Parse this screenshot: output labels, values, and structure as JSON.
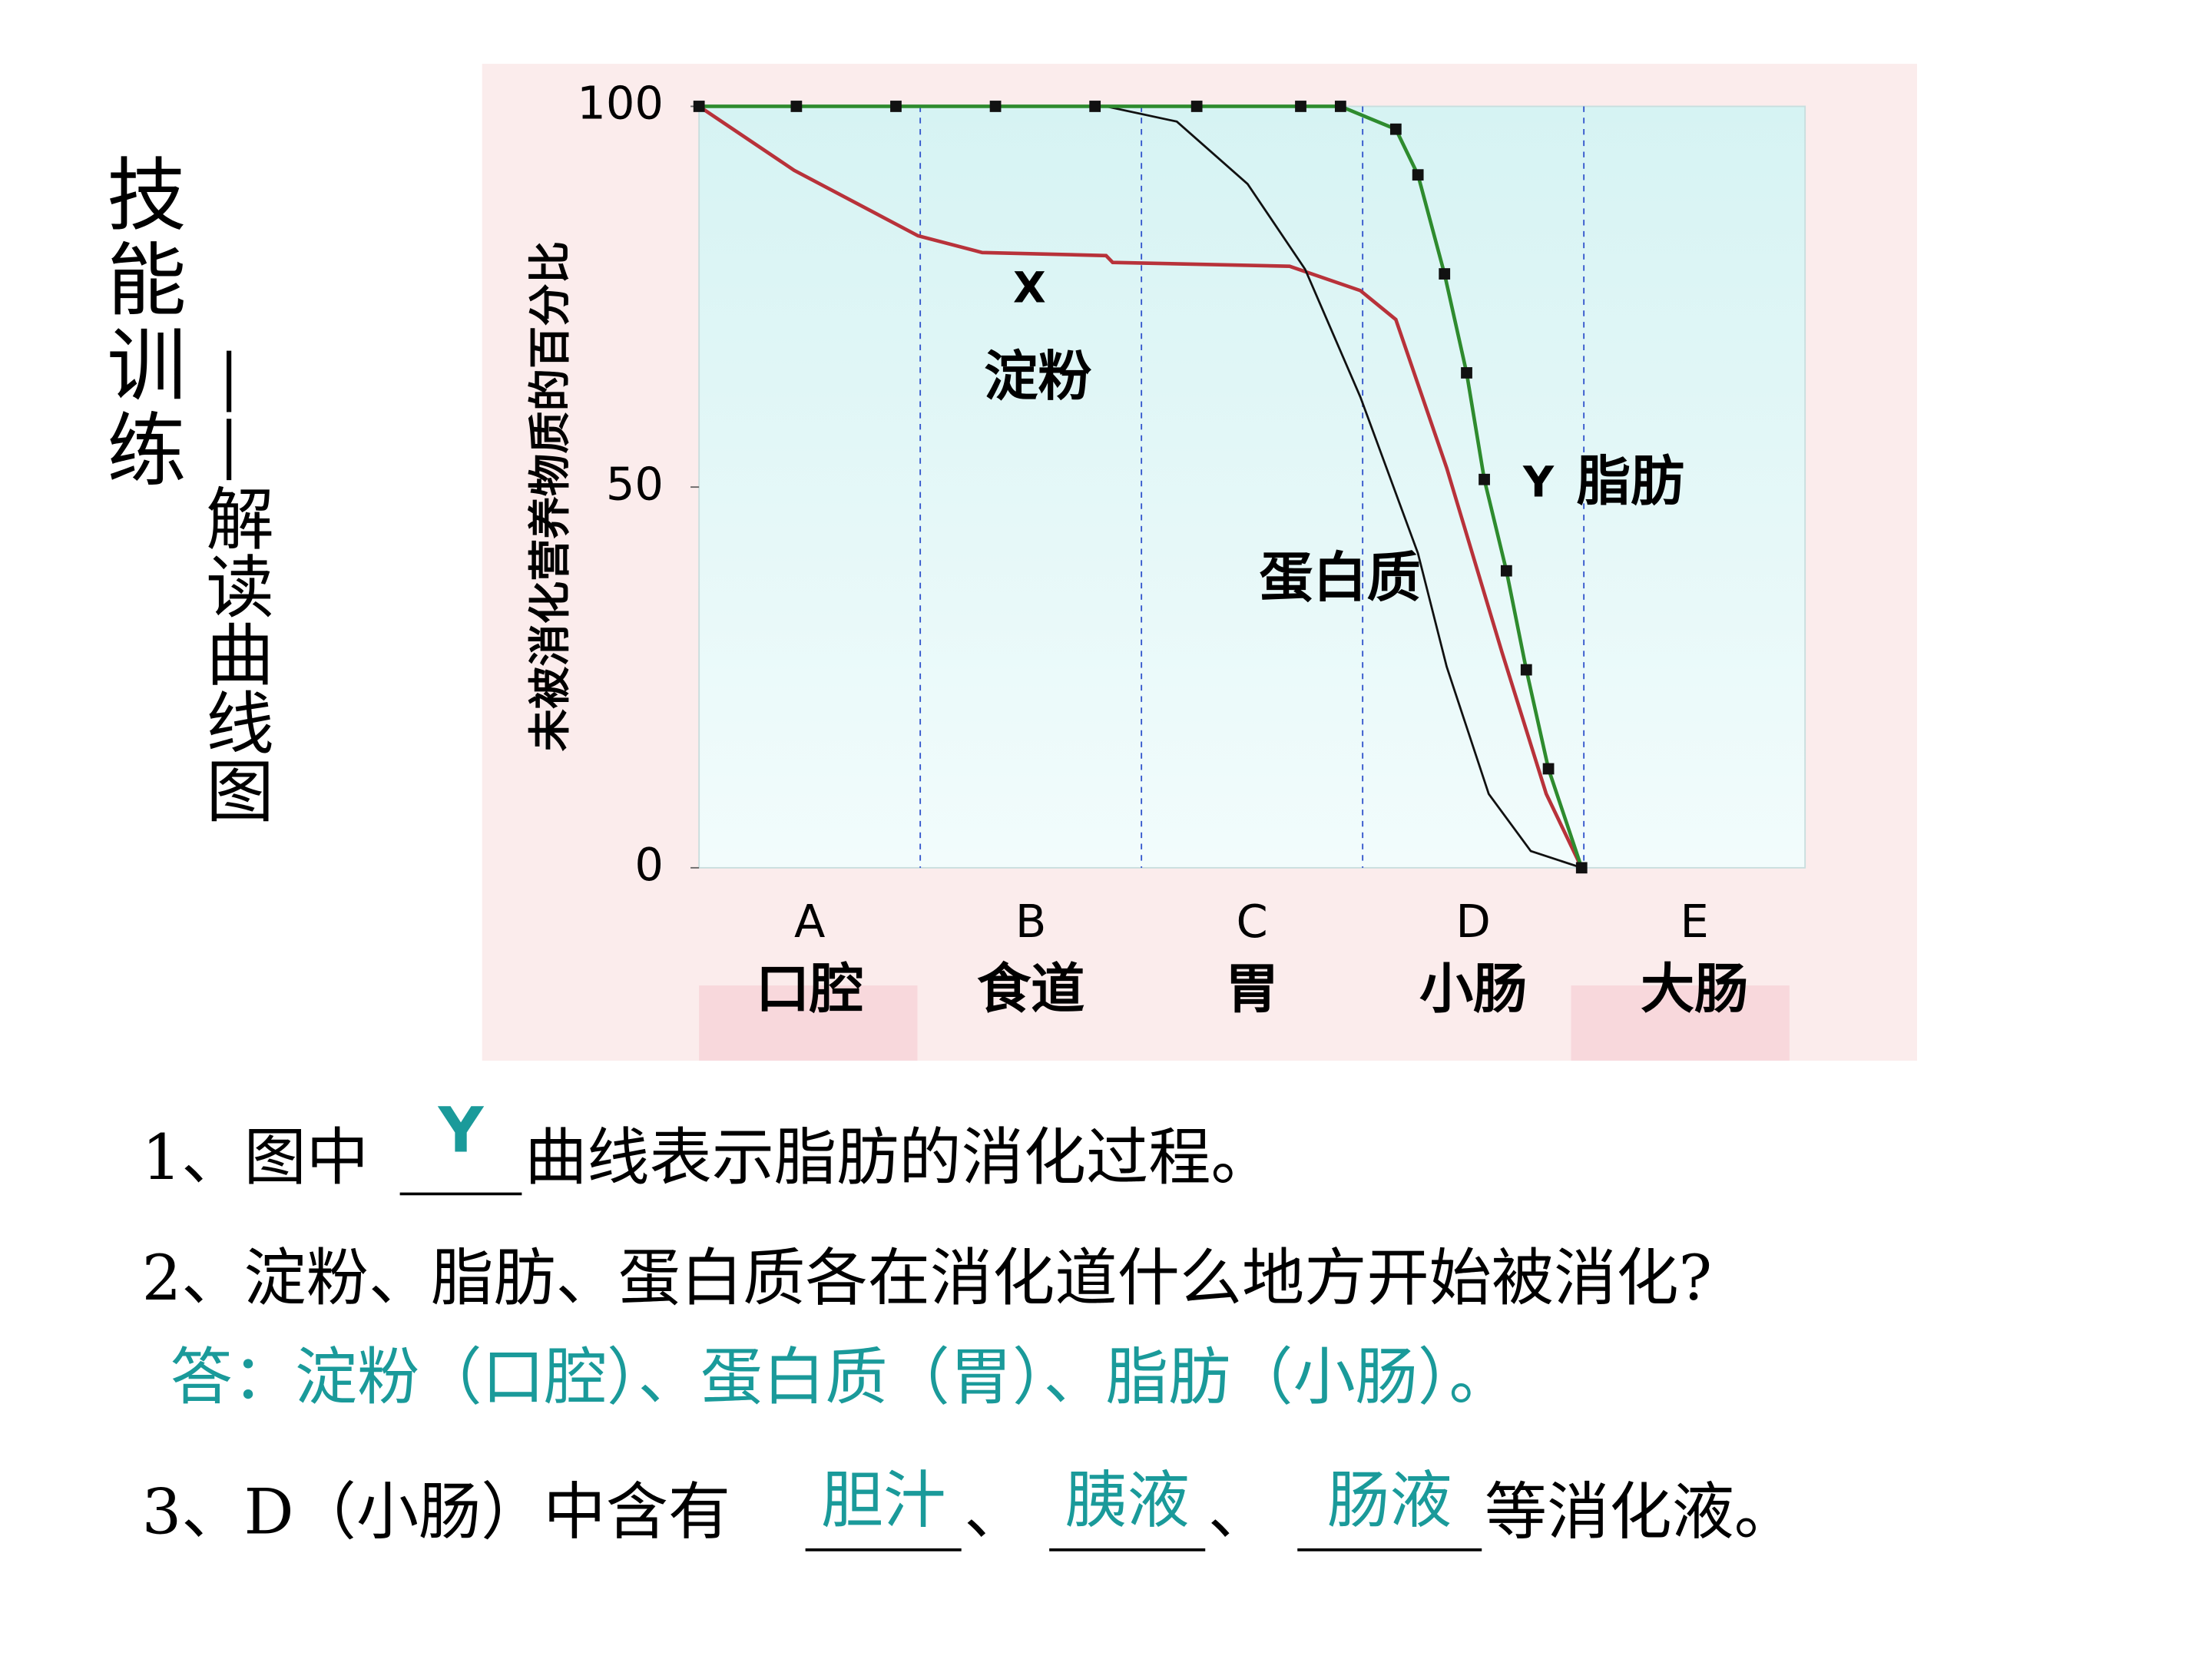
{
  "slide": {
    "title": "技能训练",
    "subtitle": "——解读曲线图",
    "questions": {
      "q1": {
        "before": "1、图中",
        "answer": "Y",
        "after": "曲线表示脂肪的消化过程。"
      },
      "q2": {
        "question": "2、淀粉、脂肪、蛋白质各在消化道什么地方开始被消化?",
        "answer": "答：淀粉（口腔）、蛋白质（胃）、脂肪（小肠）。"
      },
      "q3": {
        "before": "3、D（小肠）中含有",
        "answers": [
          "胆汁",
          "胰液",
          "肠液"
        ],
        "separator": "、",
        "after": "等消化液。"
      }
    }
  },
  "chart_data": {
    "type": "line",
    "y_label": "未被消化营养物质的百分比",
    "categories": [
      "A",
      "B",
      "C",
      "D",
      "E"
    ],
    "category_labels": [
      "口腔",
      "食道",
      "胃",
      "小肠",
      "大肠"
    ],
    "xlim": [
      0,
      5
    ],
    "ylim": [
      0,
      100
    ],
    "yticks": [
      0,
      50,
      100
    ],
    "series": [
      {
        "name": "淀粉",
        "label": "X",
        "color": "#b8323a",
        "markers": false,
        "x": [
          0,
          0.43,
          0.99,
          1.28,
          1.84,
          1.87,
          2.67,
          2.99,
          3.15,
          3.38,
          3.63,
          3.83,
          3.99
        ],
        "values": [
          100,
          91.6,
          83,
          80.8,
          80.4,
          79.5,
          79,
          75.8,
          72,
          52.5,
          28.3,
          9.7,
          0
        ]
      },
      {
        "name": "蛋白质",
        "color": "#111111",
        "markers": false,
        "x": [
          0,
          1.84,
          2.16,
          2.48,
          2.74,
          2.99,
          3.25,
          3.38,
          3.57,
          3.76,
          3.99
        ],
        "values": [
          100,
          100,
          98,
          89.8,
          78.6,
          61.8,
          41.3,
          26.4,
          9.7,
          2.2,
          0
        ]
      },
      {
        "name": "脂肪",
        "label": "Y",
        "color": "#2e8b2e",
        "markers": true,
        "x": [
          0,
          0.44,
          0.89,
          1.34,
          1.79,
          2.25,
          2.72,
          2.9,
          3.15,
          3.25,
          3.37,
          3.47,
          3.55,
          3.65,
          3.74,
          3.84,
          3.99
        ],
        "values": [
          100,
          100,
          100,
          100,
          100,
          100,
          100,
          100,
          97,
          91,
          78,
          65,
          51,
          39,
          26,
          13,
          0
        ]
      }
    ]
  }
}
